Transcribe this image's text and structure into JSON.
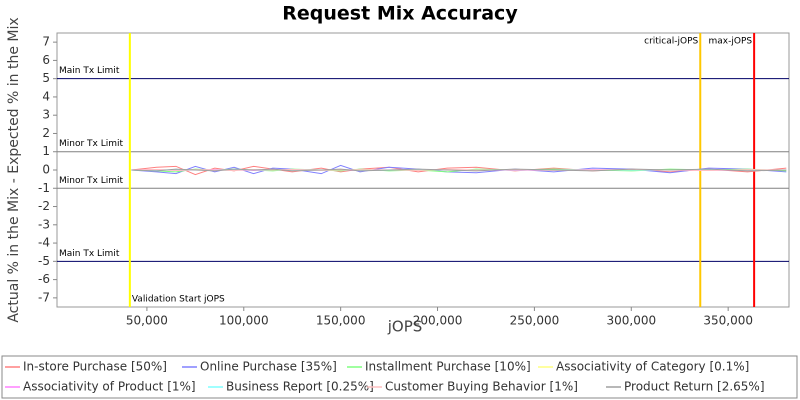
{
  "chart_data": {
    "type": "line",
    "title": "Request Mix Accuracy",
    "x_label": "jOPS",
    "y_label": "Actual % in the Mix - Expected % in the Mix",
    "x": [
      42000,
      55000,
      65000,
      75000,
      85000,
      95000,
      105000,
      115000,
      125000,
      140000,
      150000,
      160000,
      175000,
      190000,
      205000,
      220000,
      240000,
      260000,
      280000,
      300000,
      320000,
      340000,
      360000,
      380000
    ],
    "series": [
      {
        "name": "In-store Purchase [50%]",
        "color": "#ff8080",
        "values": [
          0,
          0.15,
          0.2,
          -0.25,
          0.1,
          -0.05,
          0.2,
          0.05,
          -0.1,
          0.1,
          -0.1,
          0.05,
          0.15,
          -0.1,
          0.1,
          0.15,
          -0.05,
          0.1,
          -0.05,
          0.05,
          -0.1,
          0.05,
          -0.1,
          0.1
        ]
      },
      {
        "name": "Online Purchase [35%]",
        "color": "#8080ff",
        "values": [
          0,
          -0.1,
          -0.2,
          0.2,
          -0.1,
          0.15,
          -0.2,
          0.1,
          0.05,
          -0.2,
          0.25,
          -0.1,
          0.15,
          0.05,
          -0.1,
          -0.15,
          0.05,
          -0.1,
          0.1,
          0.05,
          -0.15,
          0.1,
          0.05,
          -0.1
        ]
      },
      {
        "name": "Installment Purchase [10%]",
        "color": "#80ff80",
        "values": [
          0,
          -0.05,
          -0.1,
          0.05,
          0,
          0.05,
          0,
          -0.05,
          0.05,
          0,
          -0.05,
          0.05,
          -0.05,
          0,
          -0.1,
          0.05,
          0,
          0.05,
          0,
          -0.05,
          0.05,
          0,
          0.05,
          -0.05
        ]
      },
      {
        "name": "Associativity of Category [0.1%]",
        "color": "#ffff80",
        "values": [
          0,
          0,
          0,
          0,
          0,
          0,
          0,
          0,
          0,
          0,
          0,
          0,
          0,
          0,
          0,
          0,
          0,
          0,
          0,
          0,
          0,
          0,
          0,
          0
        ]
      },
      {
        "name": "Associativity of Product [1%]",
        "color": "#ff80ff",
        "values": [
          0,
          0.02,
          -0.02,
          0,
          0.02,
          0,
          -0.02,
          0,
          0.02,
          0,
          0,
          -0.02,
          0,
          0.02,
          0,
          0,
          -0.02,
          0,
          0.02,
          0,
          0,
          -0.02,
          0,
          0
        ]
      },
      {
        "name": "Business Report [0.25%]",
        "color": "#80ffff",
        "values": [
          0,
          0,
          0.01,
          0,
          0,
          -0.01,
          0,
          0,
          0.01,
          0,
          0,
          0,
          -0.01,
          0,
          0,
          0.01,
          0,
          0,
          0,
          -0.01,
          0,
          0,
          0.01,
          0
        ]
      },
      {
        "name": "Customer Buying Behavior [1%]",
        "color": "#ffc0c0",
        "values": [
          0,
          0.03,
          -0.02,
          0.02,
          0,
          -0.03,
          0.02,
          0,
          0.03,
          -0.02,
          0,
          0.02,
          0,
          -0.02,
          0.03,
          0,
          0.02,
          -0.02,
          0,
          0.02,
          0,
          -0.03,
          0.02,
          0
        ]
      },
      {
        "name": "Product Return [2.65%]",
        "color": "#a0a0a0",
        "values": [
          0,
          -0.05,
          0.05,
          0,
          -0.05,
          0.05,
          0,
          0.05,
          -0.05,
          0,
          0.05,
          -0.05,
          0,
          0.05,
          0,
          -0.05,
          0.05,
          0,
          -0.05,
          0.05,
          0,
          0.05,
          -0.05,
          0
        ]
      }
    ],
    "xlim": [
      3600,
      381400
    ],
    "xticks": [
      {
        "value": 50000,
        "label": "50,000"
      },
      {
        "value": 100000,
        "label": "100,000"
      },
      {
        "value": 150000,
        "label": "150,000"
      },
      {
        "value": 200000,
        "label": "200,000"
      },
      {
        "value": 250000,
        "label": "250,000"
      },
      {
        "value": 300000,
        "label": "300,000"
      },
      {
        "value": 350000,
        "label": "350,000"
      }
    ],
    "ylim": [
      -7.5,
      7.5
    ],
    "yticks": [
      -7,
      -6,
      -5,
      -4,
      -3,
      -2,
      -1,
      0,
      1,
      2,
      3,
      4,
      5,
      6,
      7
    ],
    "hlines": [
      {
        "value": 5,
        "label": "Main Tx Limit",
        "color": "#000066"
      },
      {
        "value": 1,
        "label": "Minor Tx Limit",
        "color": "#808080"
      },
      {
        "value": -1,
        "label": "Minor Tx Limit",
        "color": "#808080"
      },
      {
        "value": -5,
        "label": "Main Tx Limit",
        "color": "#000066"
      }
    ],
    "vlines": [
      {
        "value": 41200,
        "label": "Validation Start jOPS",
        "color": "#ffff00"
      },
      {
        "value": 335600,
        "label": "critical-jOPS",
        "color": "#ffc800"
      },
      {
        "value": 363400,
        "label": "max-jOPS",
        "color": "#ff0000"
      }
    ]
  }
}
